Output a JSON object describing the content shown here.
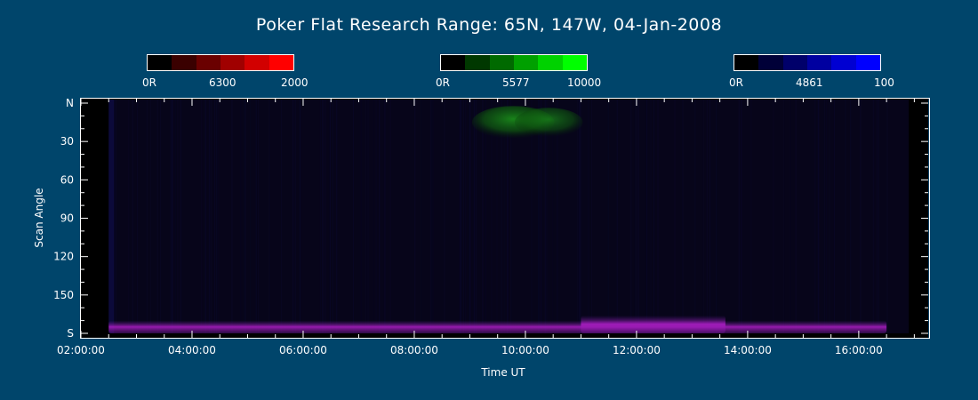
{
  "title": "Poker Flat Research Range: 65N, 147W, 04-Jan-2008",
  "colorbars": [
    {
      "channel": "6300",
      "min_label": "0R",
      "mid_label": "6300",
      "max_label": "2000",
      "colors": [
        "#000000",
        "#3a0000",
        "#6a0000",
        "#a00000",
        "#d20000",
        "#ff0000"
      ]
    },
    {
      "channel": "5577",
      "min_label": "0R",
      "mid_label": "5577",
      "max_label": "10000",
      "colors": [
        "#000000",
        "#003800",
        "#006a00",
        "#00a000",
        "#00d200",
        "#00ff00"
      ]
    },
    {
      "channel": "4861",
      "min_label": "0R",
      "mid_label": "4861",
      "max_label": "100",
      "colors": [
        "#000000",
        "#000038",
        "#00006a",
        "#0000a0",
        "#0000d2",
        "#0000ff"
      ]
    }
  ],
  "chart_data": {
    "type": "heatmap",
    "title": "Poker Flat Research Range: 65N, 147W, 04-Jan-2008",
    "xlabel": "Time UT",
    "ylabel": "Scan Angle",
    "x_ticks": [
      "02:00:00",
      "04:00:00",
      "06:00:00",
      "08:00:00",
      "10:00:00",
      "12:00:00",
      "14:00:00",
      "16:00:00"
    ],
    "y_ticks": [
      "N",
      "30",
      "60",
      "90",
      "120",
      "150",
      "S"
    ],
    "xlim_hours": [
      2.0,
      17.25
    ],
    "ylim_deg": [
      0,
      180
    ],
    "data_start_hour": 2.5,
    "data_end_hour": 16.9,
    "features": [
      {
        "channel": "5577",
        "color": "green",
        "t_start": 9.2,
        "t_end": 11.0,
        "angle_min": 5,
        "angle_max": 25
      },
      {
        "channel": "6300/4861",
        "color": "magenta",
        "t_start": 2.5,
        "t_end": 16.5,
        "angle_min": 170,
        "angle_max": 180
      },
      {
        "channel": "6300/4861",
        "color": "magenta",
        "t_start": 11.0,
        "t_end": 13.6,
        "angle_min": 166,
        "angle_max": 180
      }
    ],
    "grid": false
  }
}
